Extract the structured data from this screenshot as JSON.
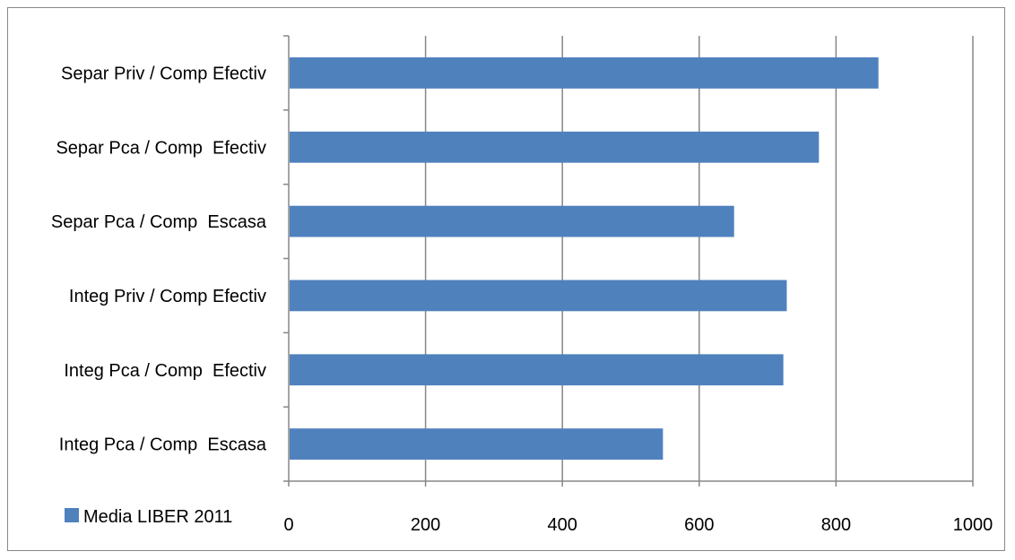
{
  "chart_data": {
    "type": "bar",
    "orientation": "horizontal",
    "categories": [
      "Separ Priv / Comp Efectiv",
      "Separ Pca / Comp  Efectiv",
      "Separ Pca / Comp  Escasa",
      "Integ Priv / Comp Efectiv",
      "Integ Pca / Comp  Efectiv",
      "Integ Pca / Comp  Escasa"
    ],
    "series": [
      {
        "name": "Media LIBER 2011",
        "values": [
          862,
          775,
          651,
          728,
          723,
          547
        ],
        "color": "#4f81bd"
      }
    ],
    "x_ticks": [
      "0",
      "200",
      "400",
      "600",
      "800",
      "1000"
    ],
    "xlim": [
      0,
      1000
    ],
    "grid": "vertical",
    "legend_position": "bottom-left"
  }
}
